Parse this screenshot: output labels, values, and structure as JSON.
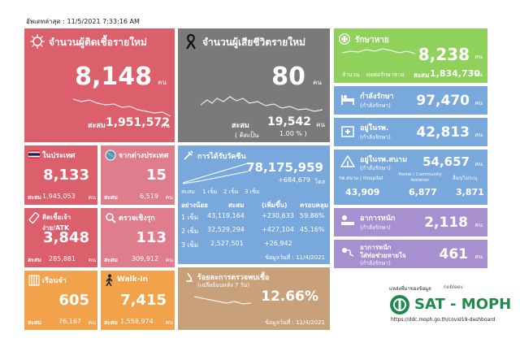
{
  "updated": "อัพเดทล่าสุด : 11/5/2021 7:33:16 AM",
  "colors": {
    "red": "#dc5f6c",
    "gray": "#7a7a7a",
    "green": "#8fd15a",
    "blue": "#79a8dd",
    "orange": "#f2a24a",
    "pink": "#e07d8c",
    "tan": "#c8a07a",
    "purple": "#a78fd0"
  },
  "new_cases": {
    "title": "จำนวนผู้ติดเชื้อรายใหม่",
    "value": "8,148",
    "unit": "คน",
    "cum_label": "สะสม",
    "cum": "1,951,572",
    "cum_unit": "คน",
    "icon": "virus-icon"
  },
  "new_deaths": {
    "title": "จำนวนผู้เสียชีวิตรายใหม่",
    "value": "80",
    "unit": "คน",
    "cum_label": "สะสม",
    "cum": "19,542",
    "cum_unit": "คน",
    "rate_label": "( คิดเป็น",
    "rate": "1.00 % )",
    "icon": "ribbon-icon"
  },
  "recovered": {
    "title": "รักษาหาย",
    "value": "8,238",
    "unit": "คน",
    "legend1": "จำนวน",
    "legend2": "ผลต่อรักษาหาย",
    "cum_label": "สะสม",
    "cum": "1,834,730",
    "cum_unit": "คน",
    "icon": "medical-cross-icon"
  },
  "in_treatment": {
    "title": "กำลังรักษา",
    "sub": "(กำลังรักษา)",
    "value": "97,470",
    "unit": "คน",
    "icon": "bed-icon"
  },
  "hospital": {
    "title": "อยู่ในรพ.",
    "sub": "(กำลังรักษา)",
    "value": "42,813",
    "unit": "คน",
    "icon": "hospital-icon"
  },
  "field_hospital": {
    "title": "อยู่ในรพ.สนาม",
    "sub": "(กำลังรักษา)",
    "value": "54,657",
    "unit": "คน",
    "col1": "รพ.สนาม / Hospitel",
    "col2": "Home / Community Isolation",
    "col3": "อื่นๆ/ไม่ระบุ",
    "v1": "43,909",
    "v2": "6,877",
    "v3": "3,871",
    "icon": "tent-icon"
  },
  "domestic": {
    "title": "ในประเทศ",
    "value": "8,133",
    "cum_label": "สะสม",
    "cum": "1,945,053",
    "cum_unit": "คน",
    "icon": "thai-flag-icon"
  },
  "abroad": {
    "title": "จากต่างประเทศ",
    "value": "15",
    "cum_label": "สะสม",
    "cum": "6,519",
    "cum_unit": "คน",
    "icon": "globe-icon"
  },
  "prison": {
    "title": "ติดเชื้อเจ้าง่าย/ATK",
    "value": "3,848",
    "cum_label": "สะสม",
    "cum": "285,881",
    "cum_unit": "คน",
    "icon": "test-kit-icon"
  },
  "proactive": {
    "title": "ตรวจเชิงรุก",
    "value": "113",
    "cum_label": "สะสม",
    "cum": "309,912",
    "cum_unit": "คน",
    "icon": "search-icon"
  },
  "jail": {
    "title": "เรือนจำ",
    "value": "605",
    "cum_label": "สะสม",
    "cum": "76,167",
    "cum_unit": "คน",
    "icon": "prison-icon"
  },
  "walkin": {
    "title": "Walk-in",
    "value": "7,415",
    "cum_label": "สะสม",
    "cum": "1,558,974",
    "cum_unit": "คน",
    "icon": "walking-icon"
  },
  "vaccine": {
    "title": "การได้รับวัคซีน",
    "total": "78,175,959",
    "delta": "+684,679",
    "dose_label": "โดส",
    "legend": [
      "สะสม",
      "1 เข็ม",
      "2 เข็ม",
      "3 เข็ม"
    ],
    "headers": [
      "อย่างน้อย",
      "สะสม",
      "(เพิ่มขึ้น)",
      "ครอบคลุม"
    ],
    "rows": [
      {
        "dose": "1 เข็ม",
        "cum": "43,119,164",
        "inc": "+230,633",
        "cov": "59.86%"
      },
      {
        "dose": "2 เข็ม",
        "cum": "32,529,294",
        "inc": "+427,104",
        "cov": "45.16%"
      },
      {
        "dose": "3 เข็ม",
        "cum": "2,527,501",
        "inc": "+26,942",
        "cov": ""
      }
    ],
    "footnote": "ข้อมูลวันที่ : 11/4/2021",
    "icon": "syringe-icon"
  },
  "severe": {
    "title": "อาการหนัก",
    "sub": "(กำลังรักษา)",
    "value": "2,118",
    "unit": "คน",
    "icon": "patient-icon"
  },
  "ventilator": {
    "title": "อาการหนัก",
    "title2": "ใส่ท่อช่วยหายใจ",
    "sub": "(กำลังรักษา)",
    "value": "461",
    "unit": "คน",
    "icon": "ventilator-icon"
  },
  "positive_rate": {
    "title": "ร้อยละการตรวจพบเชื้อ",
    "sub": "(เฉลี่ยย้อนหลัง 7 วัน)",
    "value": "12.66%",
    "footnote": "ข้อมูลวันที่ : 11/4/2021",
    "icon": "microscope-icon"
  },
  "source": {
    "label": "แหล่งที่มาของข้อมูล",
    "partner": "nobleev",
    "brand": "SAT - MOPH",
    "url": "https://ddc.moph.go.th/covid19-dashboard"
  }
}
